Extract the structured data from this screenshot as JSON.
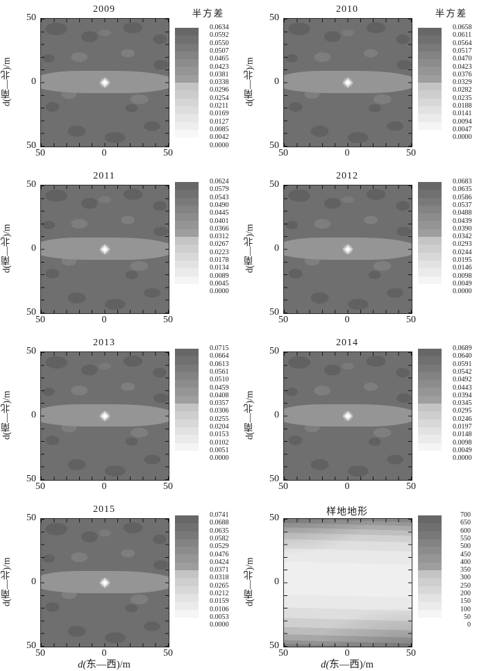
{
  "figure": {
    "background": "#ffffff",
    "axes": {
      "x_label": "d(东—西)/m",
      "y_label": "d(南—北)/m",
      "x_tick_labels": [
        "50",
        "0",
        "50"
      ],
      "y_tick_labels": [
        "50",
        "0",
        "50"
      ]
    },
    "colorbar_title_text": "半方差",
    "colors": {
      "scale_dark_start": "#676767",
      "scale_dark_end": "#9e9e9e",
      "scale_light_start": "#c4c4c4",
      "scale_light_end": "#ffffff",
      "field_base": "#6f6f6f",
      "field_band": "#959595",
      "peak": "#ffffff",
      "topo_dark": "#7f7f7f",
      "topo_light": "#efefef"
    }
  },
  "chart_data": [
    {
      "type": "contour",
      "title": "2009",
      "pattern": "variogram",
      "colorbar_title": "半方差",
      "xlabel_visible": false,
      "xlim": [
        -50,
        50
      ],
      "ylim": [
        -50,
        50
      ],
      "levels": [
        "0.0634",
        "0.0592",
        "0.0550",
        "0.0507",
        "0.0465",
        "0.0423",
        "0.0381",
        "0.0338",
        "0.0296",
        "0.0254",
        "0.0211",
        "0.0169",
        "0.0127",
        "0.0085",
        "0.0042",
        "0.0000"
      ]
    },
    {
      "type": "contour",
      "title": "2010",
      "pattern": "variogram",
      "colorbar_title": "半方差",
      "xlabel_visible": false,
      "xlim": [
        -50,
        50
      ],
      "ylim": [
        -50,
        50
      ],
      "levels": [
        "0.0658",
        "0.0611",
        "0.0564",
        "0.0517",
        "0.0470",
        "0.0423",
        "0.0376",
        "0.0329",
        "0.0282",
        "0.0235",
        "0.0188",
        "0.0141",
        "0.0094",
        "0.0047",
        "0.0000"
      ]
    },
    {
      "type": "contour",
      "title": "2011",
      "pattern": "variogram",
      "colorbar_title": "",
      "xlabel_visible": false,
      "xlim": [
        -50,
        50
      ],
      "ylim": [
        -50,
        50
      ],
      "levels": [
        "0.0624",
        "0.0579",
        "0.0543",
        "0.0490",
        "0.0445",
        "0.0401",
        "0.0366",
        "0.0312",
        "0.0267",
        "0.0223",
        "0.0178",
        "0.0134",
        "0.0089",
        "0.0045",
        "0.0000"
      ]
    },
    {
      "type": "contour",
      "title": "2012",
      "pattern": "variogram",
      "colorbar_title": "",
      "xlabel_visible": false,
      "xlim": [
        -50,
        50
      ],
      "ylim": [
        -50,
        50
      ],
      "levels": [
        "0.0683",
        "0.0635",
        "0.0586",
        "0.0537",
        "0.0488",
        "0.0439",
        "0.0390",
        "0.0342",
        "0.0293",
        "0.0244",
        "0.0195",
        "0.0146",
        "0.0098",
        "0.0049",
        "0.0000"
      ]
    },
    {
      "type": "contour",
      "title": "2013",
      "pattern": "variogram",
      "colorbar_title": "",
      "xlabel_visible": false,
      "xlim": [
        -50,
        50
      ],
      "ylim": [
        -50,
        50
      ],
      "levels": [
        "0.0715",
        "0.0664",
        "0.0613",
        "0.0561",
        "0.0510",
        "0.0459",
        "0.0408",
        "0.0357",
        "0.0306",
        "0.0255",
        "0.0204",
        "0.0153",
        "0.0102",
        "0.0051",
        "0.0000"
      ]
    },
    {
      "type": "contour",
      "title": "2014",
      "pattern": "variogram",
      "colorbar_title": "",
      "xlabel_visible": false,
      "xlim": [
        -50,
        50
      ],
      "ylim": [
        -50,
        50
      ],
      "levels": [
        "0.0689",
        "0.0640",
        "0.0591",
        "0.0542",
        "0.0492",
        "0.0443",
        "0.0394",
        "0.0345",
        "0.0295",
        "0.0246",
        "0.0197",
        "0.0148",
        "0.0098",
        "0.0049",
        "0.0000"
      ]
    },
    {
      "type": "contour",
      "title": "2015",
      "pattern": "variogram",
      "colorbar_title": "",
      "xlabel_visible": true,
      "xlim": [
        -50,
        50
      ],
      "ylim": [
        -50,
        50
      ],
      "levels": [
        "0.0741",
        "0.0688",
        "0.0635",
        "0.0582",
        "0.0529",
        "0.0476",
        "0.0424",
        "0.0371",
        "0.0318",
        "0.0265",
        "0.0212",
        "0.0159",
        "0.0106",
        "0.0053",
        "0.0000"
      ]
    },
    {
      "type": "contour",
      "title": "样地地形",
      "pattern": "topography",
      "colorbar_title": "",
      "xlabel_visible": true,
      "xlim": [
        -50,
        50
      ],
      "ylim": [
        -50,
        50
      ],
      "levels": [
        "700",
        "650",
        "600",
        "550",
        "500",
        "450",
        "400",
        "350",
        "300",
        "250",
        "200",
        "150",
        "100",
        "50",
        "0"
      ]
    }
  ]
}
